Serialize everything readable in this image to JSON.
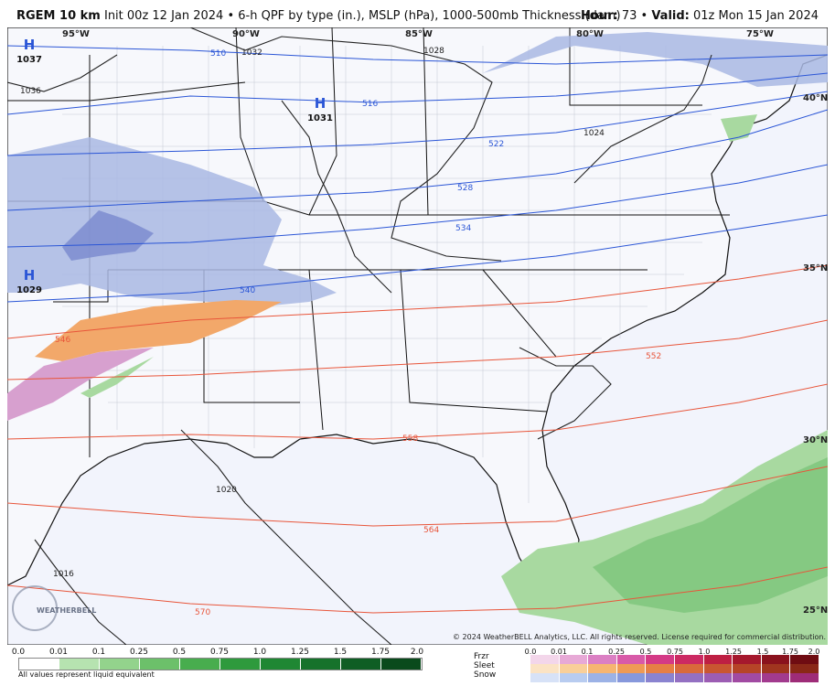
{
  "header": {
    "model": "RGEM 10 km",
    "init": "Init 00z 12 Jan 2024",
    "sep": "•",
    "desc": "6-h QPF by type (in.), MSLP (hPa), 1000-500mb Thickness (dam)",
    "hour_label": "Hour:",
    "hour_value": "73",
    "valid_label": "Valid:",
    "valid_value": "01z Mon 15 Jan 2024"
  },
  "map": {
    "longitude_labels": [
      "95°W",
      "90°W",
      "85°W",
      "80°W",
      "75°W"
    ],
    "latitude_labels": [
      "40°N",
      "35°N",
      "30°N",
      "25°N"
    ],
    "pressure_centers": [
      {
        "symbol": "H",
        "value": "1037"
      },
      {
        "symbol": "H",
        "value": "1031"
      },
      {
        "symbol": "H",
        "value": "1029"
      }
    ],
    "isobar_labels": [
      "1036",
      "1032",
      "1028",
      "1024",
      "1020",
      "1016"
    ],
    "thickness_labels_cold": [
      "510",
      "516",
      "522",
      "528",
      "534",
      "540"
    ],
    "thickness_labels_warm": [
      "546",
      "552",
      "558",
      "564",
      "570"
    ],
    "colors": {
      "ocean": "#f2f4fc",
      "land": "#f7f8fc",
      "snow_light": "#a9b9e3",
      "snow_heavy": "#7f8fd0",
      "sleet": "#f2a86a",
      "frzr": "#d7a0cf",
      "rain_light": "#a8d9a0",
      "rain_med": "#7cc47a",
      "isobar": "#222222",
      "cold_thickness": "#2a55d6",
      "warm_thickness": "#e8553a",
      "borders": "#111111",
      "counties": "#b9bec8"
    }
  },
  "footer": {
    "copyright": "© 2024 WeatherBELL Analytics, LLC. All rights reserved. License required for commercial distribution.",
    "logo_text": "WEATHERBELL",
    "rain_scale": [
      "0.0",
      "0.01",
      "0.1",
      "0.25",
      "0.5",
      "0.75",
      "1.0",
      "1.25",
      "1.5",
      "1.75",
      "2.0"
    ],
    "rain_note": "All values represent liquid equivalent",
    "ptype_scale": [
      "0.0",
      "0.01",
      "0.1",
      "0.25",
      "0.5",
      "0.75",
      "1.0",
      "1.25",
      "1.5",
      "1.75",
      "2.0"
    ],
    "ptype_labels": [
      "Frzr",
      "Sleet",
      "Snow"
    ],
    "rain_colors": [
      "#ffffff",
      "#b6e3b0",
      "#93d38c",
      "#6cc06a",
      "#48ad4e",
      "#2e9a3d",
      "#1f8733",
      "#16722b",
      "#0f5e24",
      "#0a4a1c"
    ],
    "frzr_colors": [
      "#f3d6ea",
      "#e7a9d6",
      "#db7fc3",
      "#d85aa8",
      "#d43a86",
      "#cc2a63",
      "#be1f43",
      "#a5182d",
      "#8a121d",
      "#6f0c12"
    ],
    "sleet_colors": [
      "#fbe3c4",
      "#f9cf99",
      "#f6b571",
      "#ef9a55",
      "#e67f45",
      "#d96a3b",
      "#c95631",
      "#b64427",
      "#a0351f",
      "#8a2817"
    ],
    "snow_colors": [
      "#d7e2f7",
      "#b8ccf0",
      "#9cb2e6",
      "#8798dc",
      "#8a83d0",
      "#9470c2",
      "#9c5db3",
      "#a14aa2",
      "#a23a8e",
      "#9e2c78"
    ]
  }
}
